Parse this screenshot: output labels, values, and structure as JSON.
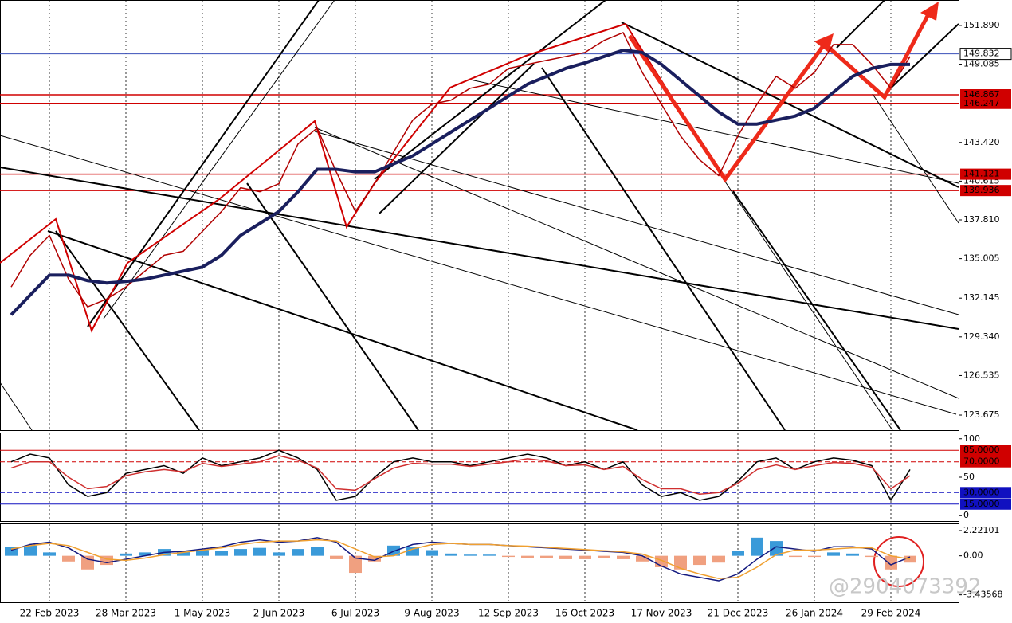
{
  "chart_data": [
    {
      "type": "line",
      "categories": [
        null,
        null,
        "22 Feb 2023",
        null,
        null,
        null,
        "28 Mar 2023",
        null,
        null,
        null,
        "1 May 2023",
        null,
        null,
        null,
        "2 Jun 2023",
        null,
        null,
        null,
        "6 Jul 2023",
        null,
        null,
        null,
        "9 Aug 2023",
        null,
        null,
        null,
        "12 Sep 2023",
        null,
        null,
        null,
        "16 Oct 2023",
        null,
        null,
        null,
        "17 Nov 2023",
        null,
        null,
        null,
        "21 Dec 2023",
        null,
        null,
        null,
        "26 Jan 2024",
        null,
        null,
        null,
        "29 Feb 2024",
        null
      ],
      "series": [
        {
          "color": "#b00000",
          "values": [
            132.95,
            135.25,
            136.69,
            133.52,
            131.51,
            132.08,
            132.95,
            134.1,
            135.25,
            135.54,
            136.98,
            138.42,
            140.14,
            139.85,
            140.43,
            143.31,
            144.46,
            141.29,
            138.42,
            140.43,
            142.73,
            145.04,
            146.19,
            146.48,
            147.34,
            147.63,
            148.78,
            149.07,
            149.36,
            149.64,
            149.93,
            150.8,
            151.37,
            148.49,
            146.19,
            143.89,
            142.16,
            141.01,
            143.89,
            146.19,
            148.2,
            147.34,
            148.49,
            150.51,
            150.51,
            149.07,
            147.34,
            149.64
          ]
        },
        {
          "color": "#1a1f5e",
          "values": [
            130.93,
            132.37,
            133.81,
            133.81,
            133.41,
            133.24,
            133.35,
            133.52,
            133.81,
            134.1,
            134.39,
            135.25,
            136.69,
            137.55,
            138.42,
            139.85,
            141.47,
            141.47,
            141.29,
            141.29,
            141.87,
            142.45,
            143.31,
            144.17,
            145.04,
            145.9,
            146.77,
            147.63,
            148.2,
            148.78,
            149.18,
            149.64,
            150.1,
            149.93,
            149.07,
            147.92,
            146.77,
            145.62,
            144.75,
            144.75,
            145.04,
            145.33,
            145.9,
            147.05,
            148.2,
            148.78,
            149.07,
            149.07
          ]
        }
      ],
      "ylim": [
        122.58,
        153.675
      ],
      "yticks": [
        {
          "value": 151.89,
          "label": "151.890"
        },
        149.085,
        {
          "value": 143.42,
          "label": "143.420"
        },
        140.615,
        {
          "value": 137.81,
          "label": "137.810"
        },
        135.005,
        132.145,
        {
          "value": 129.34,
          "label": "129.340"
        },
        126.535,
        123.675
      ],
      "levels": [
        {
          "value": 149.832,
          "color": "#3a4fb8"
        },
        {
          "value": 146.867,
          "color": "#d00000"
        },
        {
          "value": 146.247,
          "color": "#d00000"
        },
        {
          "value": 141.121,
          "color": "#d00000"
        },
        {
          "value": 139.936,
          "color": "#d00000"
        }
      ]
    },
    {
      "type": "line",
      "series": [
        {
          "color": "#000000",
          "values": [
            70,
            80,
            75,
            40,
            25,
            30,
            55,
            60,
            65,
            55,
            75,
            65,
            70,
            75,
            85,
            75,
            60,
            20,
            25,
            50,
            70,
            75,
            70,
            70,
            65,
            70,
            75,
            80,
            75,
            65,
            70,
            60,
            70,
            40,
            25,
            30,
            20,
            25,
            45,
            70,
            75,
            60,
            70,
            75,
            72,
            65,
            20,
            60
          ]
        },
        {
          "color": "#d03030",
          "values": [
            62,
            70,
            70,
            50,
            35,
            38,
            52,
            57,
            60,
            57,
            68,
            64,
            67,
            70,
            78,
            72,
            62,
            35,
            33,
            48,
            62,
            68,
            67,
            67,
            64,
            67,
            70,
            74,
            71,
            65,
            66,
            60,
            64,
            47,
            35,
            35,
            28,
            30,
            42,
            60,
            66,
            60,
            65,
            69,
            68,
            63,
            35,
            52
          ]
        }
      ],
      "ylim": [
        -7,
        107
      ],
      "yticks": [
        100,
        50,
        0
      ],
      "levels": [
        {
          "value": 85,
          "label": "85.0000",
          "color": "#d00000",
          "dash": false
        },
        {
          "value": 70,
          "label": "70.0000",
          "color": "#d00000",
          "dash": true
        },
        {
          "value": 30,
          "label": "30.0000",
          "color": "#1010c0",
          "dash": true
        },
        {
          "value": 15,
          "label": "15.0000",
          "color": "#1010c0",
          "dash": false
        }
      ]
    },
    {
      "type": "line",
      "series": [
        {
          "type": "bar",
          "color": "#3a9ad9",
          "negative_color": "#f0a080",
          "values": [
            0.8,
            0.9,
            0.3,
            -0.5,
            -1.2,
            -0.8,
            0.2,
            0.3,
            0.6,
            0.4,
            0.5,
            0.4,
            0.6,
            0.7,
            0.3,
            0.6,
            0.8,
            -0.3,
            -1.5,
            -0.5,
            0.9,
            0.8,
            0.5,
            0.2,
            0.1,
            0.1,
            -0.1,
            -0.2,
            -0.2,
            -0.3,
            -0.3,
            -0.2,
            -0.3,
            -0.5,
            -1.0,
            -1.2,
            -0.8,
            -0.6,
            0.4,
            1.6,
            1.3,
            -0.1,
            -0.1,
            0.3,
            0.2,
            -0.1,
            -1.2,
            -0.6
          ]
        },
        {
          "color": "#141a80",
          "values": [
            0.5,
            1.0,
            1.2,
            0.7,
            -0.3,
            -0.6,
            -0.3,
            0.0,
            0.3,
            0.4,
            0.6,
            0.8,
            1.2,
            1.4,
            1.2,
            1.3,
            1.6,
            1.2,
            -0.2,
            -0.4,
            0.4,
            1.0,
            1.2,
            1.1,
            1.0,
            1.0,
            0.9,
            0.8,
            0.7,
            0.6,
            0.5,
            0.4,
            0.3,
            0.0,
            -0.9,
            -1.6,
            -1.9,
            -2.2,
            -1.6,
            -0.3,
            0.8,
            0.6,
            0.4,
            0.8,
            0.8,
            0.6,
            -0.8,
            -0.1
          ]
        },
        {
          "color": "#f0a030",
          "values": [
            0.6,
            0.9,
            1.1,
            0.9,
            0.3,
            -0.3,
            -0.4,
            -0.2,
            0.1,
            0.3,
            0.5,
            0.7,
            1.0,
            1.2,
            1.3,
            1.3,
            1.4,
            1.3,
            0.6,
            -0.1,
            0.0,
            0.6,
            1.0,
            1.1,
            1.0,
            1.0,
            0.9,
            0.85,
            0.75,
            0.65,
            0.55,
            0.45,
            0.35,
            0.15,
            -0.4,
            -1.1,
            -1.6,
            -2.0,
            -1.9,
            -1.0,
            0.1,
            0.5,
            0.5,
            0.6,
            0.7,
            0.7,
            0.0,
            -0.3
          ]
        }
      ],
      "ylim": [
        -4.09,
        2.78
      ],
      "yticks": [
        2.22101,
        {
          "value": 0,
          "label": "0.00"
        },
        -3.43568
      ],
      "annotation": "@2904073392"
    }
  ]
}
